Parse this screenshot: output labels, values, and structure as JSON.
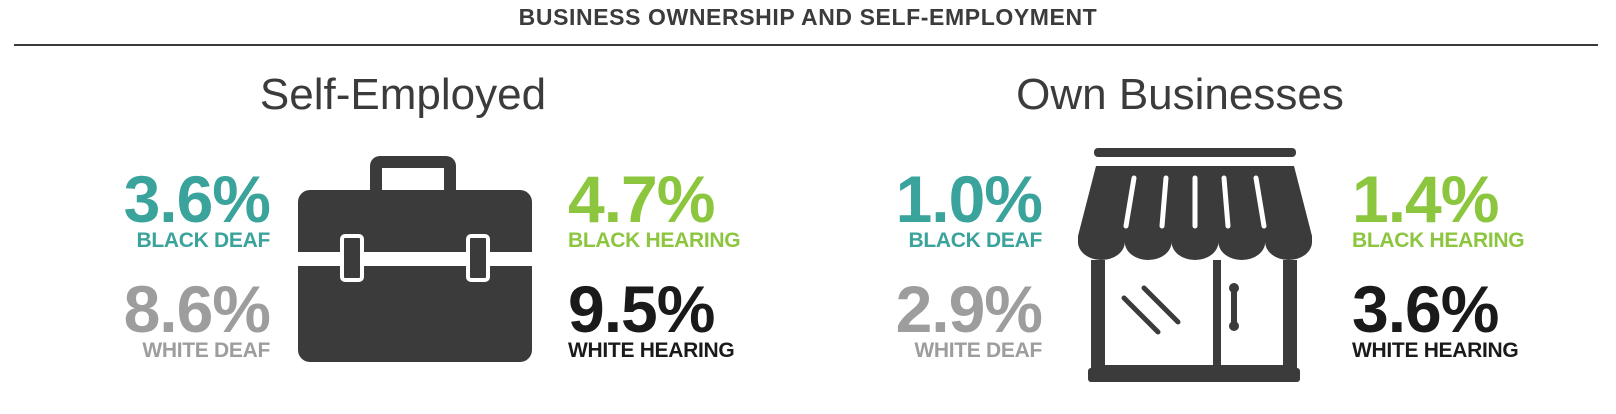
{
  "header": {
    "title": "BUSINESS OWNERSHIP AND SELF-EMPLOYMENT"
  },
  "colors": {
    "black_deaf": "#3aa39b",
    "black_hearing": "#8cc63f",
    "white_deaf": "#9d9d9d",
    "white_hearing": "#1a1a1a",
    "icon": "#3b3b3c"
  },
  "panels": [
    {
      "title": "Self-Employed",
      "icon": "briefcase-icon",
      "stats": {
        "black_deaf": {
          "value": "3.6%",
          "label": "BLACK DEAF"
        },
        "black_hearing": {
          "value": "4.7%",
          "label": "BLACK HEARING"
        },
        "white_deaf": {
          "value": "8.6%",
          "label": "WHITE DEAF"
        },
        "white_hearing": {
          "value": "9.5%",
          "label": "WHITE HEARING"
        }
      }
    },
    {
      "title": "Own Businesses",
      "icon": "storefront-icon",
      "stats": {
        "black_deaf": {
          "value": "1.0%",
          "label": "BLACK DEAF"
        },
        "black_hearing": {
          "value": "1.4%",
          "label": "BLACK HEARING"
        },
        "white_deaf": {
          "value": "2.9%",
          "label": "WHITE DEAF"
        },
        "white_hearing": {
          "value": "3.6%",
          "label": "WHITE HEARING"
        }
      }
    }
  ]
}
